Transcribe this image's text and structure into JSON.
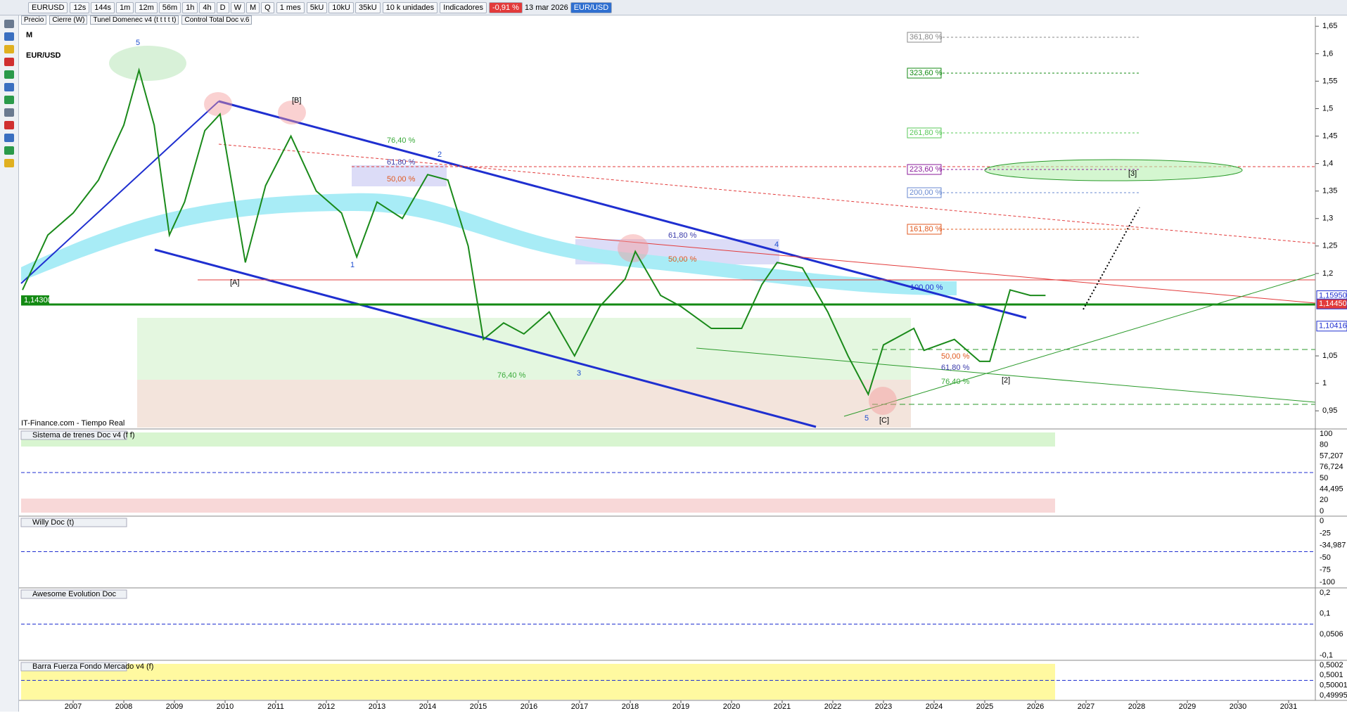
{
  "toolbar": {
    "symbol": "EURUSD",
    "timeframes": [
      "12s",
      "144s",
      "1m",
      "12m",
      "56m",
      "1h",
      "4h",
      "D",
      "W",
      "M",
      "Q"
    ],
    "period": "1 mes",
    "units": [
      "5kU",
      "10kU",
      "35kU"
    ],
    "units_select": "10 k unidades",
    "indicators": "Indicadores",
    "change": "-0,91 %",
    "date": "13 mar 2026",
    "pair": "EUR/USD"
  },
  "tabs": [
    "Precio",
    "Cierre (W)",
    "Tunel Domenec v4 (t t t t t)",
    "Control Total Doc v.6"
  ],
  "chart_data": {
    "type": "line",
    "title": "M",
    "subtitle": "EUR/USD",
    "source": "IT-Finance.com - Tiempo Real",
    "color": "#1a8a1a",
    "x": [
      2006.0,
      2006.5,
      2007.0,
      2007.5,
      2008.0,
      2008.3,
      2008.6,
      2008.9,
      2009.2,
      2009.6,
      2009.9,
      2010.4,
      2010.8,
      2011.3,
      2011.8,
      2012.3,
      2012.6,
      2013.0,
      2013.5,
      2014.0,
      2014.4,
      2014.8,
      2015.1,
      2015.5,
      2015.9,
      2016.4,
      2016.9,
      2017.4,
      2017.9,
      2018.1,
      2018.6,
      2019.0,
      2019.6,
      2020.2,
      2020.6,
      2020.9,
      2021.4,
      2021.9,
      2022.3,
      2022.7,
      2023.0,
      2023.6,
      2023.8,
      2024.4,
      2024.9,
      2025.1,
      2025.5,
      2025.9,
      2026.2
    ],
    "values": [
      1.17,
      1.27,
      1.31,
      1.37,
      1.47,
      1.57,
      1.47,
      1.27,
      1.33,
      1.46,
      1.49,
      1.22,
      1.36,
      1.45,
      1.35,
      1.31,
      1.23,
      1.33,
      1.3,
      1.38,
      1.37,
      1.25,
      1.08,
      1.11,
      1.09,
      1.13,
      1.05,
      1.14,
      1.19,
      1.24,
      1.16,
      1.14,
      1.1,
      1.1,
      1.18,
      1.22,
      1.21,
      1.13,
      1.05,
      0.98,
      1.07,
      1.1,
      1.06,
      1.08,
      1.04,
      1.04,
      1.17,
      1.16,
      1.16
    ],
    "xlim": [
      2005.95,
      2031.5
    ],
    "xticks": [
      2007,
      2008,
      2009,
      2010,
      2011,
      2012,
      2013,
      2014,
      2015,
      2016,
      2017,
      2018,
      2019,
      2020,
      2021,
      2022,
      2023,
      2024,
      2025,
      2026,
      2027,
      2028,
      2029,
      2030,
      2031
    ],
    "ylim": [
      0.917,
      1.667
    ],
    "yticks": [
      {
        "value": 1.65,
        "label": "1,65"
      },
      {
        "value": 1.6,
        "label": "1,6"
      },
      {
        "value": 1.55,
        "label": "1,55"
      },
      {
        "value": 1.5,
        "label": "1,5"
      },
      {
        "value": 1.45,
        "label": "1,45"
      },
      {
        "value": 1.4,
        "label": "1,4"
      },
      {
        "value": 1.35,
        "label": "1,35"
      },
      {
        "value": 1.3,
        "label": "1,3"
      },
      {
        "value": 1.25,
        "label": "1,25"
      },
      {
        "value": 1.2,
        "label": "1,2"
      },
      {
        "value": 1.05,
        "label": "1,05"
      },
      {
        "value": 1,
        "label": "1"
      },
      {
        "value": 0.95,
        "label": "0,95"
      }
    ],
    "price_labels": [
      {
        "value": 1.1595,
        "label": "1,15950",
        "color": "#ffffff"
      },
      {
        "value": 1.1445,
        "label": "1,14450",
        "color": "#e23b3b"
      },
      {
        "value": 1.10416,
        "label": "1,10416",
        "color": "#ffffff"
      }
    ],
    "level_label": "1,14300",
    "fib_labels": [
      "361,80 %",
      "323,60 %",
      "261,80 %",
      "223,60 %",
      "200,00 %",
      "161,80 %"
    ],
    "annotations": [
      "5",
      "[B]",
      "2",
      "1",
      "[A]",
      "3",
      "4",
      "5",
      "[C]",
      "[2]",
      "[3]",
      "76,40 %",
      "61,80 %",
      "50,00 %",
      "61,80 %",
      "50,00 %",
      "76,40 %",
      "50,00 %",
      "61,80 %",
      "76,40 %",
      "100,00 %"
    ]
  },
  "panels": [
    {
      "name": "Sistema de trenes Doc v4 (f f)",
      "axis": [
        "100",
        "80",
        "57,207",
        "76,724",
        "50",
        "44,495",
        "20",
        "0"
      ]
    },
    {
      "name": "Willy Doc (t)",
      "axis": [
        "0",
        "-25",
        "-34,987",
        "-50",
        "-75",
        "-100"
      ]
    },
    {
      "name": "Awesome Evolution Doc",
      "axis": [
        "0,2",
        "0,1",
        "0,0506",
        "-0,1"
      ]
    },
    {
      "name": "Barra Fuerza Fondo Mercado v4 (f)",
      "axis": [
        "0,5002",
        "0,5001",
        "0,50001",
        "0,49995"
      ]
    }
  ]
}
